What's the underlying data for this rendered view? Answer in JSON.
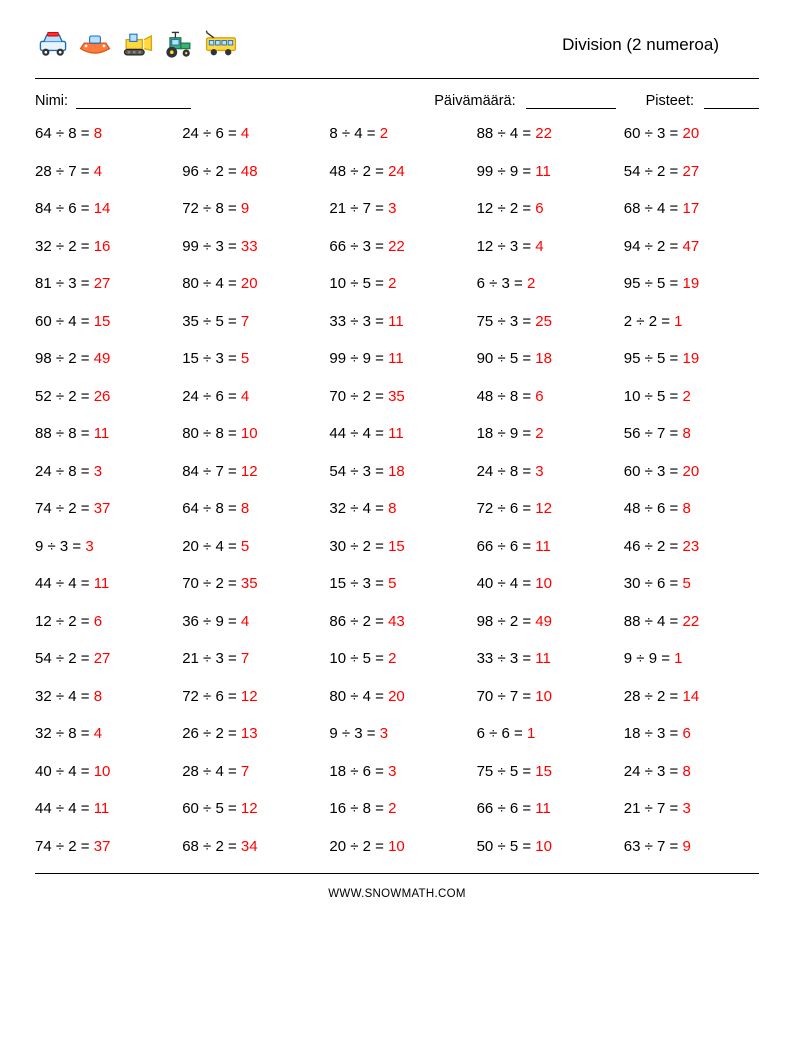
{
  "title": "Division (2 numeroa)",
  "info": {
    "name_label": "Nimi:",
    "date_label": "Päivämäärä:",
    "score_label": "Pisteet:"
  },
  "footer": "WWW.SNOWMATH.COM",
  "styling": {
    "answer_color": "#ff0000",
    "text_color": "#000000",
    "font_size": 15,
    "title_font_size": 17,
    "grid_cols": 5,
    "row_gap": 20.5,
    "rule_color": "#000000",
    "background": "#ffffff"
  },
  "vehicles": [
    "car",
    "boat",
    "bulldozer",
    "tractor",
    "bus"
  ],
  "problems": [
    {
      "a": 64,
      "b": 8,
      "r": 8
    },
    {
      "a": 24,
      "b": 6,
      "r": 4
    },
    {
      "a": 8,
      "b": 4,
      "r": 2
    },
    {
      "a": 88,
      "b": 4,
      "r": 22
    },
    {
      "a": 60,
      "b": 3,
      "r": 20
    },
    {
      "a": 28,
      "b": 7,
      "r": 4
    },
    {
      "a": 96,
      "b": 2,
      "r": 48
    },
    {
      "a": 48,
      "b": 2,
      "r": 24
    },
    {
      "a": 99,
      "b": 9,
      "r": 11
    },
    {
      "a": 54,
      "b": 2,
      "r": 27
    },
    {
      "a": 84,
      "b": 6,
      "r": 14
    },
    {
      "a": 72,
      "b": 8,
      "r": 9
    },
    {
      "a": 21,
      "b": 7,
      "r": 3
    },
    {
      "a": 12,
      "b": 2,
      "r": 6
    },
    {
      "a": 68,
      "b": 4,
      "r": 17
    },
    {
      "a": 32,
      "b": 2,
      "r": 16
    },
    {
      "a": 99,
      "b": 3,
      "r": 33
    },
    {
      "a": 66,
      "b": 3,
      "r": 22
    },
    {
      "a": 12,
      "b": 3,
      "r": 4
    },
    {
      "a": 94,
      "b": 2,
      "r": 47
    },
    {
      "a": 81,
      "b": 3,
      "r": 27
    },
    {
      "a": 80,
      "b": 4,
      "r": 20
    },
    {
      "a": 10,
      "b": 5,
      "r": 2
    },
    {
      "a": 6,
      "b": 3,
      "r": 2
    },
    {
      "a": 95,
      "b": 5,
      "r": 19
    },
    {
      "a": 60,
      "b": 4,
      "r": 15
    },
    {
      "a": 35,
      "b": 5,
      "r": 7
    },
    {
      "a": 33,
      "b": 3,
      "r": 11
    },
    {
      "a": 75,
      "b": 3,
      "r": 25
    },
    {
      "a": 2,
      "b": 2,
      "r": 1
    },
    {
      "a": 98,
      "b": 2,
      "r": 49
    },
    {
      "a": 15,
      "b": 3,
      "r": 5
    },
    {
      "a": 99,
      "b": 9,
      "r": 11
    },
    {
      "a": 90,
      "b": 5,
      "r": 18
    },
    {
      "a": 95,
      "b": 5,
      "r": 19
    },
    {
      "a": 52,
      "b": 2,
      "r": 26
    },
    {
      "a": 24,
      "b": 6,
      "r": 4
    },
    {
      "a": 70,
      "b": 2,
      "r": 35
    },
    {
      "a": 48,
      "b": 8,
      "r": 6
    },
    {
      "a": 10,
      "b": 5,
      "r": 2
    },
    {
      "a": 88,
      "b": 8,
      "r": 11
    },
    {
      "a": 80,
      "b": 8,
      "r": 10
    },
    {
      "a": 44,
      "b": 4,
      "r": 11
    },
    {
      "a": 18,
      "b": 9,
      "r": 2
    },
    {
      "a": 56,
      "b": 7,
      "r": 8
    },
    {
      "a": 24,
      "b": 8,
      "r": 3
    },
    {
      "a": 84,
      "b": 7,
      "r": 12
    },
    {
      "a": 54,
      "b": 3,
      "r": 18
    },
    {
      "a": 24,
      "b": 8,
      "r": 3
    },
    {
      "a": 60,
      "b": 3,
      "r": 20
    },
    {
      "a": 74,
      "b": 2,
      "r": 37
    },
    {
      "a": 64,
      "b": 8,
      "r": 8
    },
    {
      "a": 32,
      "b": 4,
      "r": 8
    },
    {
      "a": 72,
      "b": 6,
      "r": 12
    },
    {
      "a": 48,
      "b": 6,
      "r": 8
    },
    {
      "a": 9,
      "b": 3,
      "r": 3
    },
    {
      "a": 20,
      "b": 4,
      "r": 5
    },
    {
      "a": 30,
      "b": 2,
      "r": 15
    },
    {
      "a": 66,
      "b": 6,
      "r": 11
    },
    {
      "a": 46,
      "b": 2,
      "r": 23
    },
    {
      "a": 44,
      "b": 4,
      "r": 11
    },
    {
      "a": 70,
      "b": 2,
      "r": 35
    },
    {
      "a": 15,
      "b": 3,
      "r": 5
    },
    {
      "a": 40,
      "b": 4,
      "r": 10
    },
    {
      "a": 30,
      "b": 6,
      "r": 5
    },
    {
      "a": 12,
      "b": 2,
      "r": 6
    },
    {
      "a": 36,
      "b": 9,
      "r": 4
    },
    {
      "a": 86,
      "b": 2,
      "r": 43
    },
    {
      "a": 98,
      "b": 2,
      "r": 49
    },
    {
      "a": 88,
      "b": 4,
      "r": 22
    },
    {
      "a": 54,
      "b": 2,
      "r": 27
    },
    {
      "a": 21,
      "b": 3,
      "r": 7
    },
    {
      "a": 10,
      "b": 5,
      "r": 2
    },
    {
      "a": 33,
      "b": 3,
      "r": 11
    },
    {
      "a": 9,
      "b": 9,
      "r": 1
    },
    {
      "a": 32,
      "b": 4,
      "r": 8
    },
    {
      "a": 72,
      "b": 6,
      "r": 12
    },
    {
      "a": 80,
      "b": 4,
      "r": 20
    },
    {
      "a": 70,
      "b": 7,
      "r": 10
    },
    {
      "a": 28,
      "b": 2,
      "r": 14
    },
    {
      "a": 32,
      "b": 8,
      "r": 4
    },
    {
      "a": 26,
      "b": 2,
      "r": 13
    },
    {
      "a": 9,
      "b": 3,
      "r": 3
    },
    {
      "a": 6,
      "b": 6,
      "r": 1
    },
    {
      "a": 18,
      "b": 3,
      "r": 6
    },
    {
      "a": 40,
      "b": 4,
      "r": 10
    },
    {
      "a": 28,
      "b": 4,
      "r": 7
    },
    {
      "a": 18,
      "b": 6,
      "r": 3
    },
    {
      "a": 75,
      "b": 5,
      "r": 15
    },
    {
      "a": 24,
      "b": 3,
      "r": 8
    },
    {
      "a": 44,
      "b": 4,
      "r": 11
    },
    {
      "a": 60,
      "b": 5,
      "r": 12
    },
    {
      "a": 16,
      "b": 8,
      "r": 2
    },
    {
      "a": 66,
      "b": 6,
      "r": 11
    },
    {
      "a": 21,
      "b": 7,
      "r": 3
    },
    {
      "a": 74,
      "b": 2,
      "r": 37
    },
    {
      "a": 68,
      "b": 2,
      "r": 34
    },
    {
      "a": 20,
      "b": 2,
      "r": 10
    },
    {
      "a": 50,
      "b": 5,
      "r": 10
    },
    {
      "a": 63,
      "b": 7,
      "r": 9
    }
  ]
}
